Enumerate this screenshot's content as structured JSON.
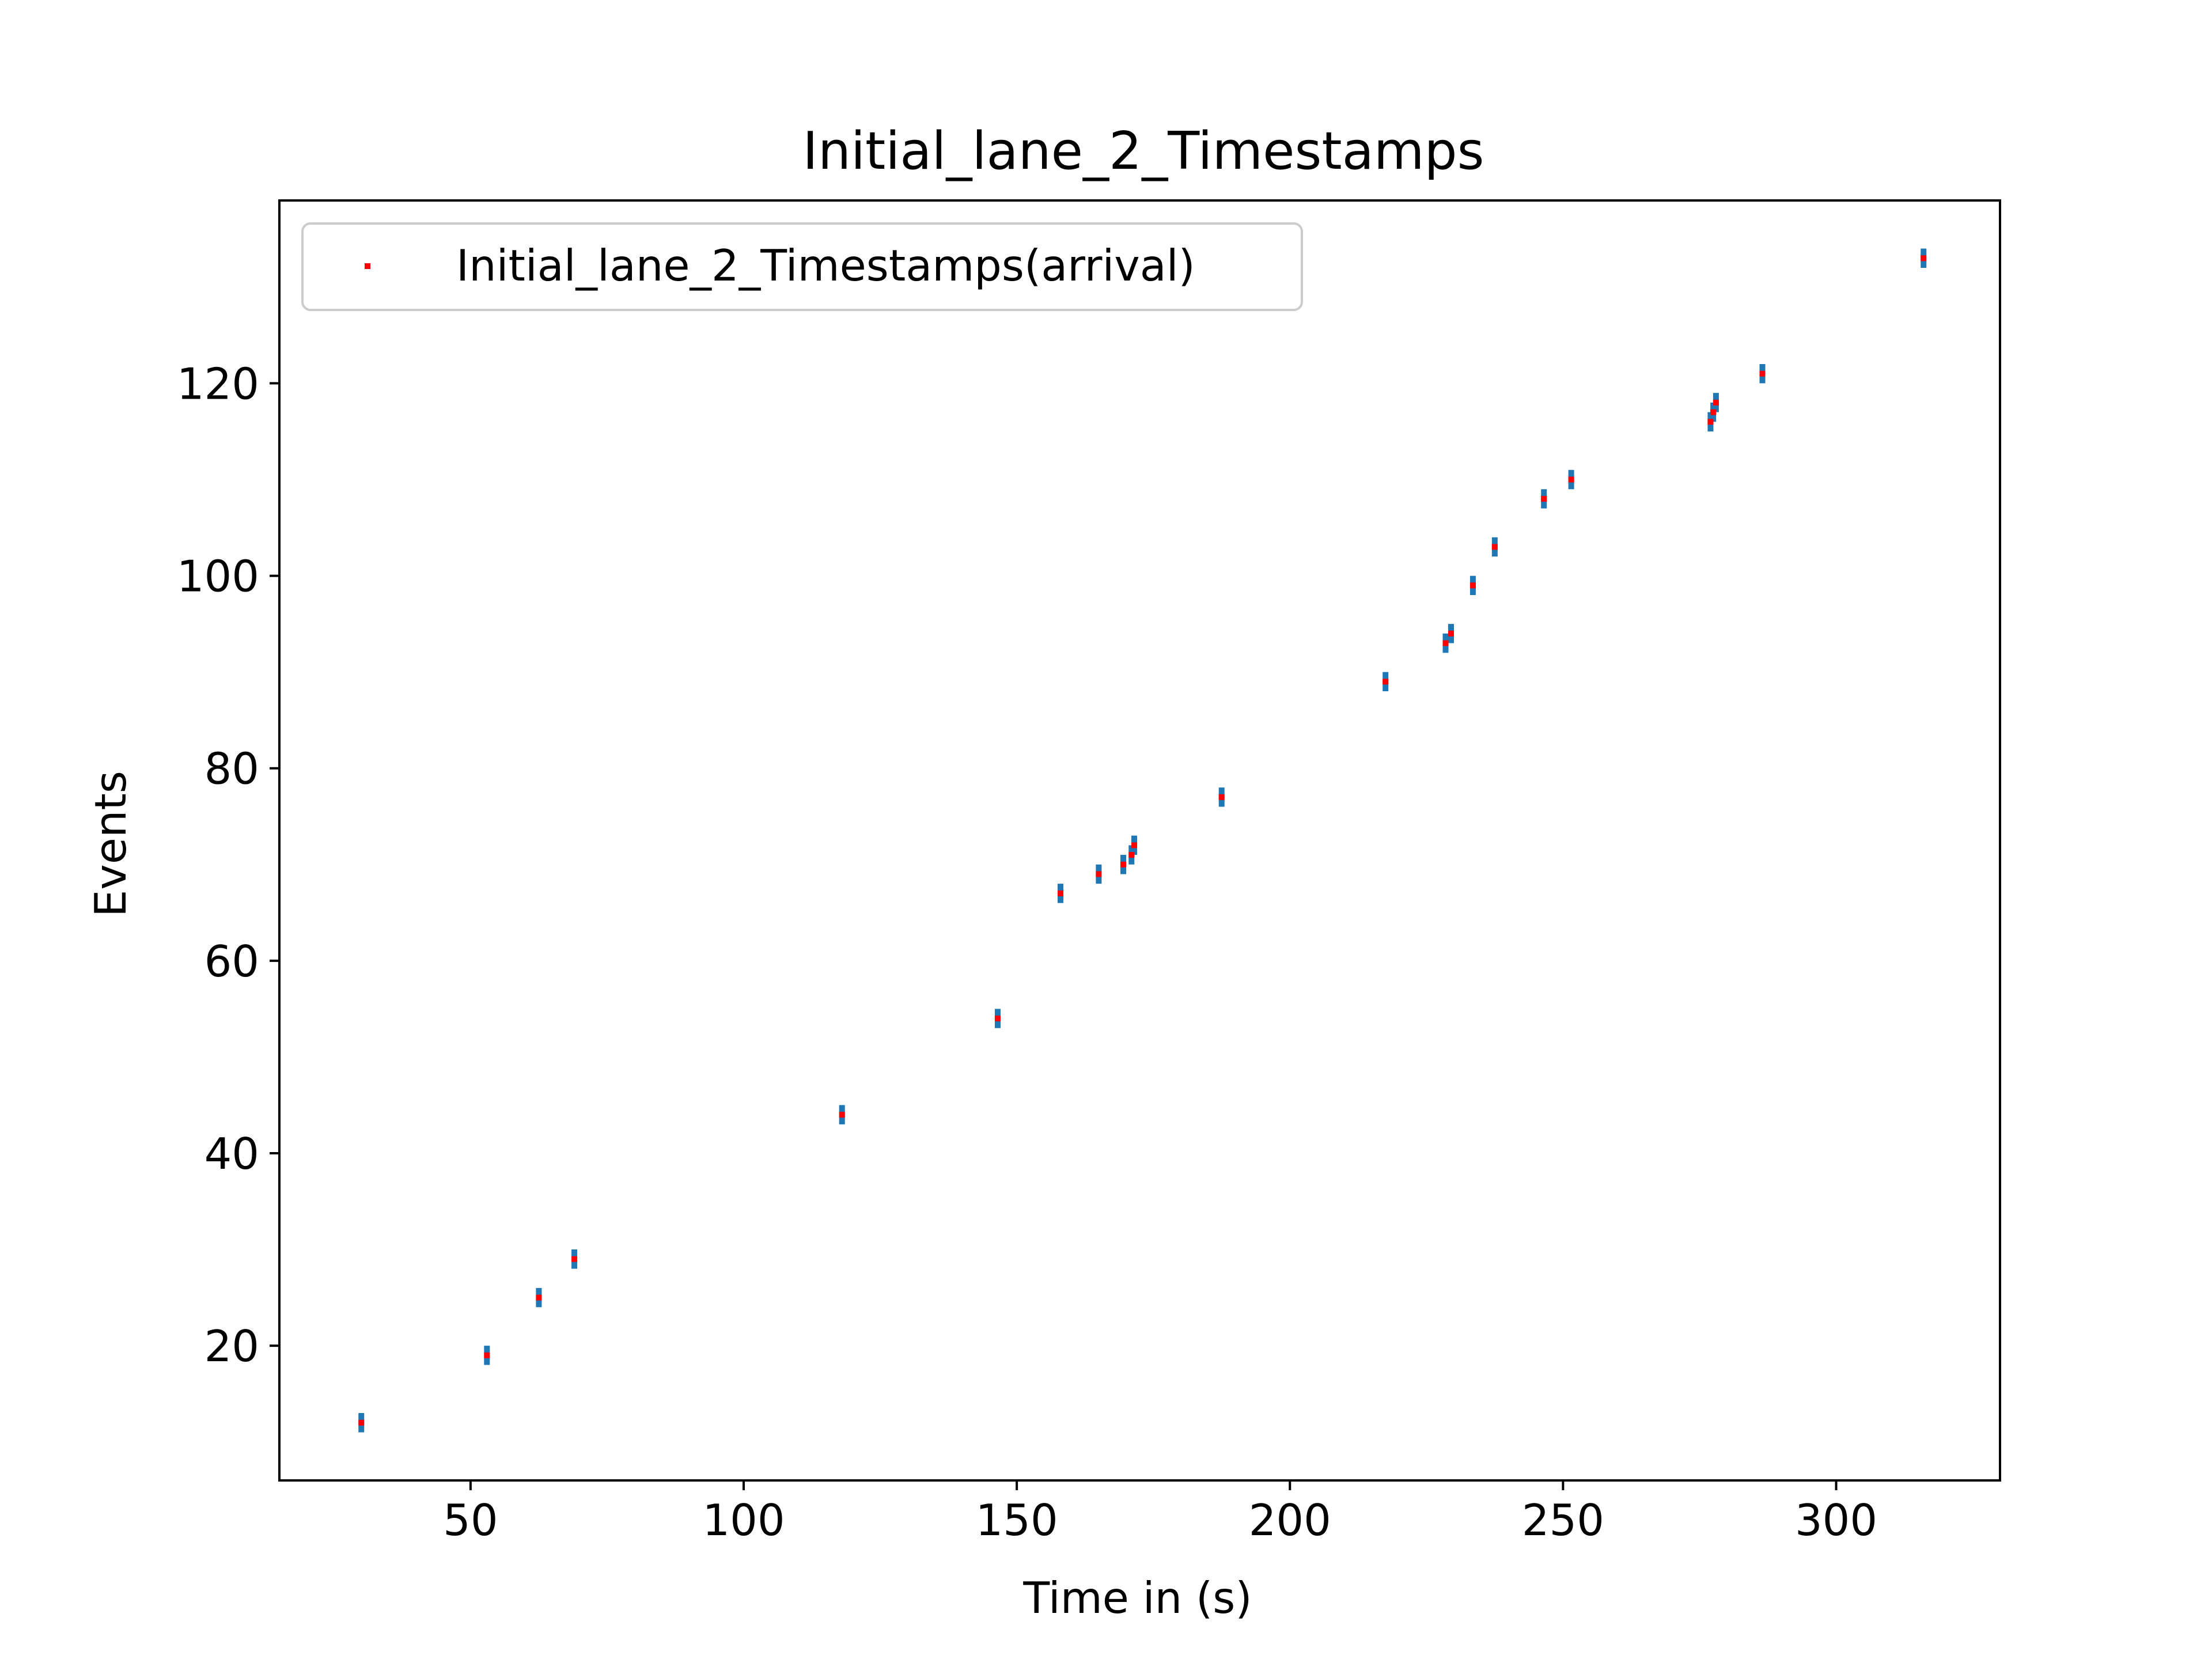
{
  "chart_data": {
    "type": "scatter",
    "title": "Initial_lane_2_Timestamps",
    "xlabel": "Time in (s)",
    "ylabel": "Events",
    "xlim": [
      15,
      330
    ],
    "ylim": [
      6,
      139
    ],
    "xticks": [
      50,
      100,
      150,
      200,
      250,
      300
    ],
    "yticks": [
      20,
      40,
      60,
      80,
      100,
      120
    ],
    "grid": false,
    "legend_position": "top-left",
    "series": [
      {
        "name": "Initial_lane_2_Timestamps(arrival)",
        "marker_color": "#ff0000",
        "errorbar_color": "#1f77b4",
        "errorbar_halfwidth": 1,
        "points": [
          {
            "x": 30,
            "y": 12
          },
          {
            "x": 53,
            "y": 19
          },
          {
            "x": 62.5,
            "y": 25
          },
          {
            "x": 69,
            "y": 29
          },
          {
            "x": 118,
            "y": 44
          },
          {
            "x": 146.5,
            "y": 54
          },
          {
            "x": 158,
            "y": 67
          },
          {
            "x": 165,
            "y": 69
          },
          {
            "x": 169.5,
            "y": 70
          },
          {
            "x": 171,
            "y": 71
          },
          {
            "x": 171.5,
            "y": 72
          },
          {
            "x": 187.5,
            "y": 77
          },
          {
            "x": 217.5,
            "y": 89
          },
          {
            "x": 228.5,
            "y": 93
          },
          {
            "x": 229.5,
            "y": 94
          },
          {
            "x": 233.5,
            "y": 99
          },
          {
            "x": 237.5,
            "y": 103
          },
          {
            "x": 246.5,
            "y": 108
          },
          {
            "x": 251.5,
            "y": 110
          },
          {
            "x": 277,
            "y": 116
          },
          {
            "x": 277.5,
            "y": 117
          },
          {
            "x": 278,
            "y": 118
          },
          {
            "x": 286.5,
            "y": 121
          },
          {
            "x": 316,
            "y": 133
          }
        ]
      }
    ]
  }
}
